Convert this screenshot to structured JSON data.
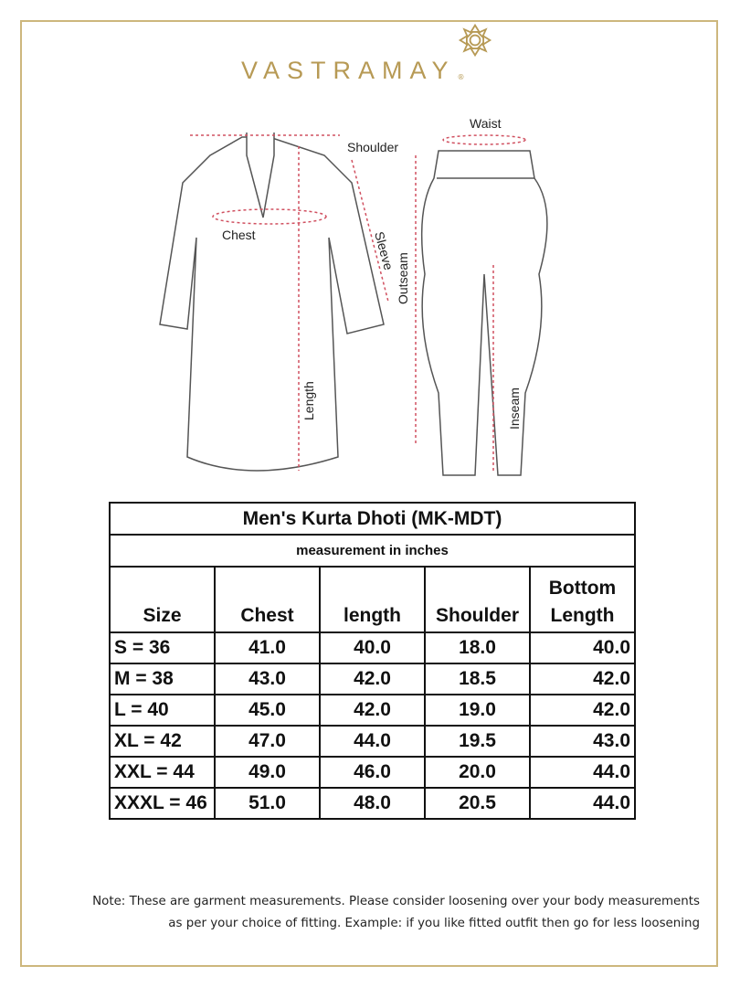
{
  "brand": {
    "name": "VASTRAMAY",
    "registered": "®"
  },
  "diagram": {
    "labels": {
      "shoulder": "Shoulder",
      "chest": "Chest",
      "sleeve": "Sleeve",
      "length": "Length",
      "waist": "Waist",
      "outseam": "Outseam",
      "inseam": "Inseam"
    }
  },
  "table": {
    "title": "Men's Kurta Dhoti (MK-MDT)",
    "subtitle": "measurement in inches",
    "headers": [
      "Size",
      "Chest",
      "length",
      "Shoulder",
      "Bottom Length"
    ],
    "rows": [
      [
        "S = 36",
        "41.0",
        "40.0",
        "18.0",
        "40.0"
      ],
      [
        "M = 38",
        "43.0",
        "42.0",
        "18.5",
        "42.0"
      ],
      [
        "L = 40",
        "45.0",
        "42.0",
        "19.0",
        "42.0"
      ],
      [
        "XL = 42",
        "47.0",
        "44.0",
        "19.5",
        "43.0"
      ],
      [
        "XXL = 44",
        "49.0",
        "46.0",
        "20.0",
        "44.0"
      ],
      [
        "XXXL = 46",
        "51.0",
        "48.0",
        "20.5",
        "44.0"
      ]
    ]
  },
  "note": {
    "line1": "Note: These are garment measurements. Please consider loosening over your body measurements",
    "line2": "as per your choice of fitting. Example: if you like fitted outfit then go for less loosening"
  },
  "colors": {
    "gold": "#b79a55",
    "measure": "#d05060"
  }
}
